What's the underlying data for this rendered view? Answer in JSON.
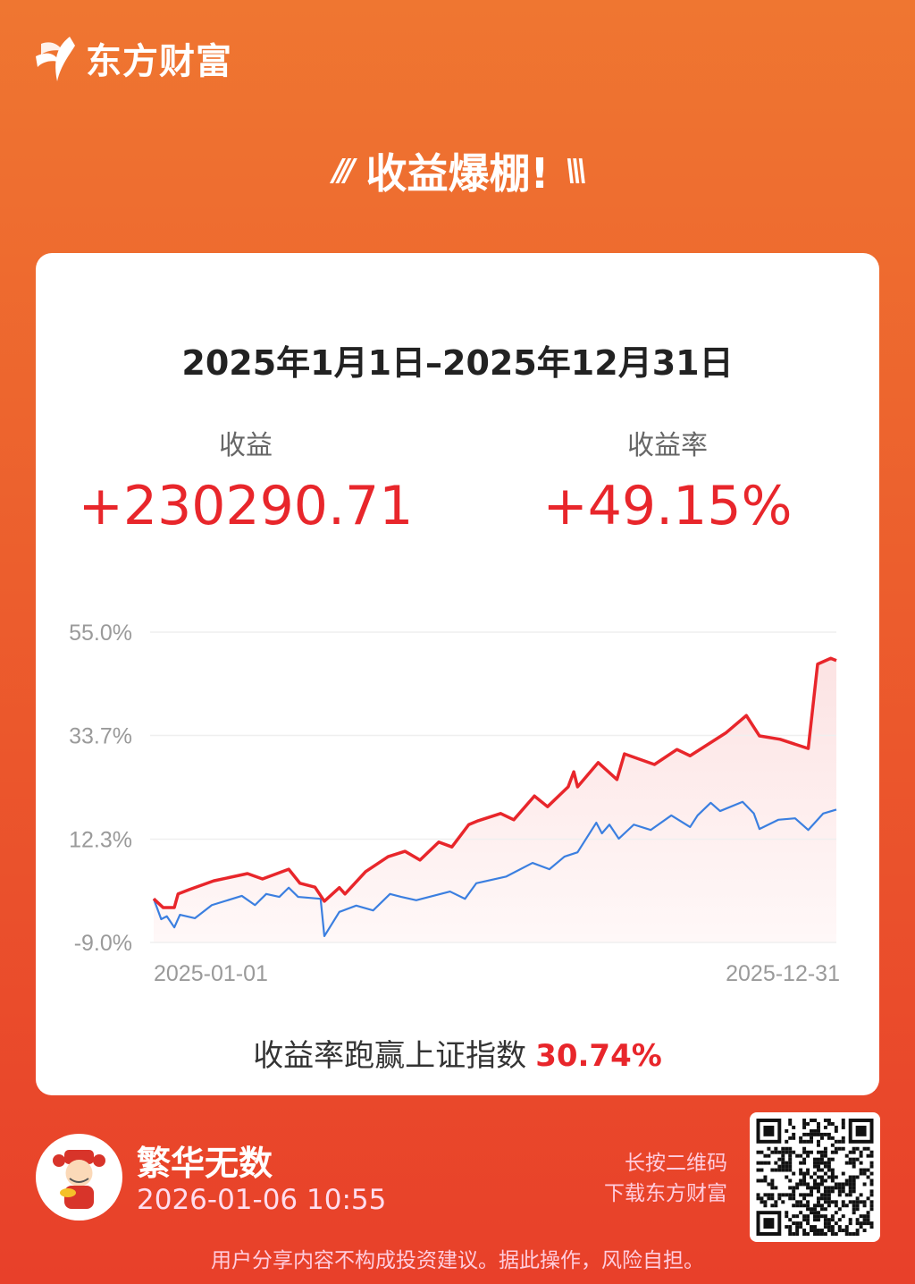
{
  "brand": {
    "name": "东方财富"
  },
  "headline": {
    "left_deco": "///",
    "title": "收益爆棚!",
    "right_deco": "\\\\\\"
  },
  "card": {
    "period": "2025年1月1日–2025年12月31日",
    "profit": {
      "label": "收益",
      "value": "+230290.71"
    },
    "rate": {
      "label": "收益率",
      "value": "+49.15%"
    },
    "beat": {
      "label": "收益率跑赢上证指数",
      "value": "30.74%"
    }
  },
  "colors": {
    "profit": "#E8262B",
    "portfolio_line": "#E8262B",
    "index_line": "#3B7FE0",
    "bg_top": "#EF7631",
    "bg_bottom": "#E8402A"
  },
  "chart_data": {
    "type": "line",
    "ylim": [
      -9.0,
      55.0
    ],
    "yticks": [
      "55.0%",
      "33.7%",
      "12.3%",
      "-9.0%"
    ],
    "ytick_values": [
      55.0,
      33.7,
      12.3,
      -9.0
    ],
    "xlim": [
      "2025-01-01",
      "2025-12-31"
    ],
    "xticks": [
      "2025-01-01",
      "2025-12-31"
    ],
    "grid": true,
    "series": [
      {
        "color": "#E8262B",
        "fill": true,
        "points": [
          [
            "2025-01-01",
            0.0
          ],
          [
            "2025-01-06",
            -1.8
          ],
          [
            "2025-01-12",
            -1.8
          ],
          [
            "2025-01-14",
            1.0
          ],
          [
            "2025-01-20",
            1.9
          ],
          [
            "2025-02-02",
            3.7
          ],
          [
            "2025-02-20",
            5.2
          ],
          [
            "2025-02-28",
            4.1
          ],
          [
            "2025-03-14",
            6.1
          ],
          [
            "2025-03-20",
            3.2
          ],
          [
            "2025-03-28",
            2.4
          ],
          [
            "2025-04-02",
            -0.5
          ],
          [
            "2025-04-10",
            2.3
          ],
          [
            "2025-04-13",
            1.0
          ],
          [
            "2025-04-24",
            5.6
          ],
          [
            "2025-05-06",
            8.7
          ],
          [
            "2025-05-15",
            9.8
          ],
          [
            "2025-05-23",
            8.0
          ],
          [
            "2025-06-02",
            11.7
          ],
          [
            "2025-06-09",
            10.7
          ],
          [
            "2025-06-18",
            15.3
          ],
          [
            "2025-06-23",
            16.1
          ],
          [
            "2025-07-05",
            17.6
          ],
          [
            "2025-07-12",
            16.3
          ],
          [
            "2025-07-23",
            21.2
          ],
          [
            "2025-07-30",
            19.0
          ],
          [
            "2025-08-10",
            23.1
          ],
          [
            "2025-08-13",
            26.2
          ],
          [
            "2025-08-15",
            23.1
          ],
          [
            "2025-08-26",
            28.1
          ],
          [
            "2025-09-05",
            24.6
          ],
          [
            "2025-09-09",
            29.9
          ],
          [
            "2025-09-25",
            27.7
          ],
          [
            "2025-10-07",
            30.8
          ],
          [
            "2025-10-14",
            29.5
          ],
          [
            "2025-11-02",
            34.2
          ],
          [
            "2025-11-13",
            37.8
          ],
          [
            "2025-11-20",
            33.6
          ],
          [
            "2025-12-01",
            32.9
          ],
          [
            "2025-12-16",
            31.0
          ],
          [
            "2025-12-21",
            48.4
          ],
          [
            "2025-12-28",
            49.6
          ],
          [
            "2025-12-31",
            49.15
          ]
        ]
      },
      {
        "color": "#3B7FE0",
        "fill": false,
        "points": [
          [
            "2025-01-01",
            0.0
          ],
          [
            "2025-01-05",
            -4.2
          ],
          [
            "2025-01-08",
            -3.6
          ],
          [
            "2025-01-12",
            -5.9
          ],
          [
            "2025-01-15",
            -3.3
          ],
          [
            "2025-01-23",
            -4.0
          ],
          [
            "2025-02-01",
            -1.3
          ],
          [
            "2025-02-17",
            0.6
          ],
          [
            "2025-02-24",
            -1.3
          ],
          [
            "2025-03-02",
            1.0
          ],
          [
            "2025-03-09",
            0.4
          ],
          [
            "2025-03-14",
            2.3
          ],
          [
            "2025-03-19",
            0.4
          ],
          [
            "2025-03-31",
            0.0
          ],
          [
            "2025-04-02",
            -7.7
          ],
          [
            "2025-04-10",
            -2.7
          ],
          [
            "2025-04-19",
            -1.4
          ],
          [
            "2025-04-28",
            -2.4
          ],
          [
            "2025-05-07",
            1.0
          ],
          [
            "2025-05-13",
            0.4
          ],
          [
            "2025-05-21",
            -0.3
          ],
          [
            "2025-06-08",
            1.5
          ],
          [
            "2025-06-16",
            0.0
          ],
          [
            "2025-06-22",
            3.2
          ],
          [
            "2025-07-08",
            4.6
          ],
          [
            "2025-07-22",
            7.4
          ],
          [
            "2025-07-31",
            6.1
          ],
          [
            "2025-08-08",
            8.7
          ],
          [
            "2025-08-15",
            9.6
          ],
          [
            "2025-08-25",
            15.7
          ],
          [
            "2025-08-28",
            13.5
          ],
          [
            "2025-09-01",
            15.3
          ],
          [
            "2025-09-06",
            12.4
          ],
          [
            "2025-09-14",
            15.3
          ],
          [
            "2025-09-23",
            14.2
          ],
          [
            "2025-10-04",
            17.2
          ],
          [
            "2025-10-14",
            14.8
          ],
          [
            "2025-10-18",
            17.2
          ],
          [
            "2025-10-25",
            19.8
          ],
          [
            "2025-10-30",
            18.1
          ],
          [
            "2025-11-11",
            20.0
          ],
          [
            "2025-11-17",
            17.6
          ],
          [
            "2025-11-20",
            14.4
          ],
          [
            "2025-11-30",
            16.3
          ],
          [
            "2025-12-09",
            16.6
          ],
          [
            "2025-12-16",
            14.2
          ],
          [
            "2025-12-24",
            17.6
          ],
          [
            "2025-12-31",
            18.41
          ]
        ]
      }
    ]
  },
  "user": {
    "name": "繁华无数",
    "time": "2026-01-06 10:55"
  },
  "download": {
    "line1": "长按二维码",
    "line2": "下载东方财富"
  },
  "disclaimer": "用户分享内容不构成投资建议。据此操作，风险自担。"
}
